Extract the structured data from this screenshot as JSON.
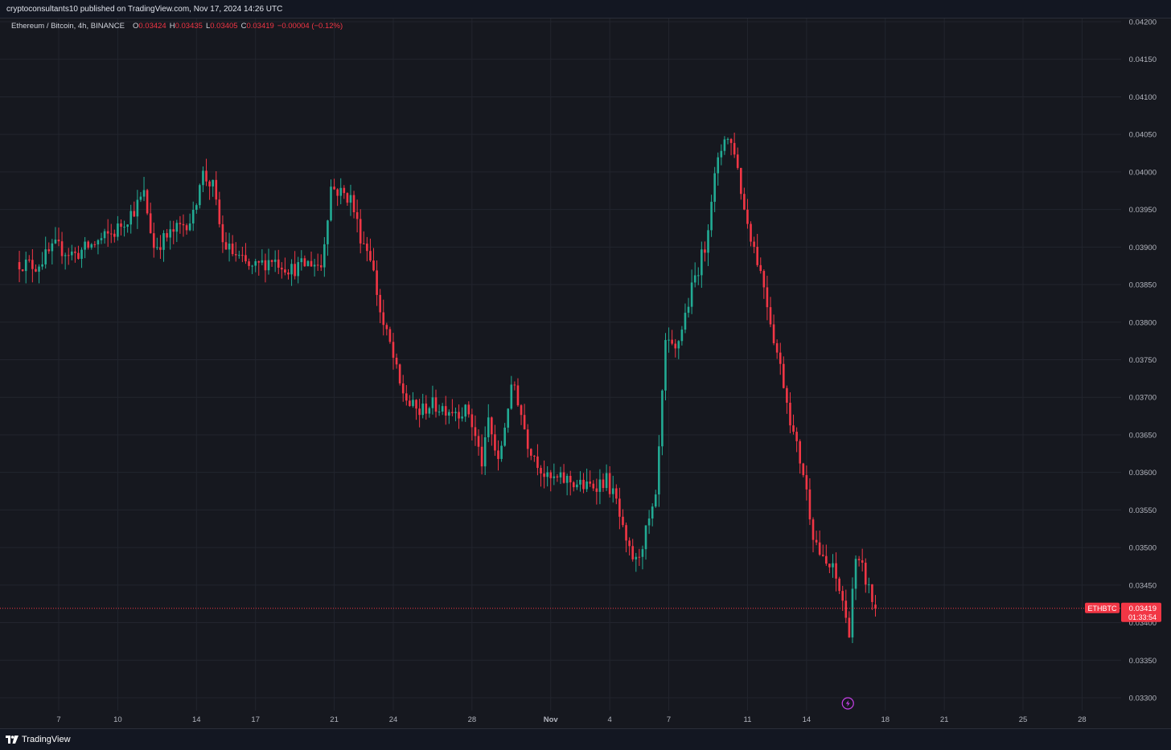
{
  "header": {
    "publisher_line": "cryptoconsultants10 published on TradingView.com, Nov 17, 2024 14:26 UTC"
  },
  "legend": {
    "symbol": "Ethereum / Bitcoin, 4h, BINANCE",
    "open_label": "O",
    "open": "0.03424",
    "high_label": "H",
    "high": "0.03435",
    "low_label": "L",
    "low": "0.03405",
    "close_label": "C",
    "close": "0.03419",
    "change": "−0.00004 (−0.12%)"
  },
  "footer": {
    "brand": "TradingView"
  },
  "colors": {
    "background": "#16181f",
    "grid": "#22252e",
    "up": "#22ab94",
    "down": "#f23645",
    "text": "#b2b5be"
  },
  "price_tag": {
    "ticker": "ETHBTC",
    "price": "0.03419",
    "countdown": "01:33:54"
  },
  "chart_data": {
    "type": "candlestick",
    "title": "Ethereum / Bitcoin, 4h, BINANCE",
    "ylim": [
      0.033,
      0.042
    ],
    "y_ticks": [
      "0.04200",
      "0.04150",
      "0.04100",
      "0.04050",
      "0.04000",
      "0.03950",
      "0.03900",
      "0.03850",
      "0.03800",
      "0.03750",
      "0.03700",
      "0.03650",
      "0.03600",
      "0.03550",
      "0.03500",
      "0.03450",
      "0.03400",
      "0.03350",
      "0.03300"
    ],
    "x_ticks": [
      {
        "label": "7",
        "day": 7
      },
      {
        "label": "10",
        "day": 10
      },
      {
        "label": "14",
        "day": 14
      },
      {
        "label": "17",
        "day": 17
      },
      {
        "label": "21",
        "day": 21
      },
      {
        "label": "24",
        "day": 24
      },
      {
        "label": "28",
        "day": 28
      },
      {
        "label": "Nov",
        "day": 32
      },
      {
        "label": "4",
        "day": 35
      },
      {
        "label": "7",
        "day": 38
      },
      {
        "label": "11",
        "day": 42
      },
      {
        "label": "14",
        "day": 45
      },
      {
        "label": "18",
        "day": 49
      },
      {
        "label": "21",
        "day": 52
      },
      {
        "label": "25",
        "day": 56
      },
      {
        "label": "28",
        "day": 59
      }
    ],
    "last_price": 0.03419,
    "anchors": [
      [
        5.0,
        0.0388
      ],
      [
        6.0,
        0.03875
      ],
      [
        7.0,
        0.039
      ],
      [
        8.0,
        0.0389
      ],
      [
        9.0,
        0.03905
      ],
      [
        10.0,
        0.0392
      ],
      [
        11.0,
        0.0395
      ],
      [
        11.5,
        0.0397
      ],
      [
        12.0,
        0.039
      ],
      [
        13.0,
        0.0392
      ],
      [
        14.0,
        0.0394
      ],
      [
        14.4,
        0.04
      ],
      [
        15.0,
        0.0398
      ],
      [
        15.5,
        0.03905
      ],
      [
        16.5,
        0.0388
      ],
      [
        17.0,
        0.0387
      ],
      [
        18.0,
        0.03885
      ],
      [
        19.0,
        0.0387
      ],
      [
        20.0,
        0.0388
      ],
      [
        20.5,
        0.03875
      ],
      [
        21.0,
        0.0398
      ],
      [
        22.0,
        0.03965
      ],
      [
        22.5,
        0.03915
      ],
      [
        23.0,
        0.0389
      ],
      [
        23.6,
        0.038
      ],
      [
        24.0,
        0.0377
      ],
      [
        24.5,
        0.03715
      ],
      [
        25.0,
        0.0369
      ],
      [
        25.5,
        0.0368
      ],
      [
        26.0,
        0.0369
      ],
      [
        27.0,
        0.03685
      ],
      [
        28.0,
        0.0368
      ],
      [
        28.7,
        0.0361
      ],
      [
        29.0,
        0.0367
      ],
      [
        29.5,
        0.0361
      ],
      [
        30.0,
        0.0369
      ],
      [
        30.3,
        0.0372
      ],
      [
        31.0,
        0.0364
      ],
      [
        32.0,
        0.0359
      ],
      [
        33.0,
        0.0359
      ],
      [
        34.0,
        0.0358
      ],
      [
        35.0,
        0.0359
      ],
      [
        35.5,
        0.0356
      ],
      [
        36.0,
        0.035
      ],
      [
        36.5,
        0.0348
      ],
      [
        37.0,
        0.0352
      ],
      [
        37.5,
        0.0356
      ],
      [
        38.0,
        0.0377
      ],
      [
        38.5,
        0.0376
      ],
      [
        39.0,
        0.0381
      ],
      [
        39.5,
        0.0386
      ],
      [
        40.0,
        0.039
      ],
      [
        40.4,
        0.0398
      ],
      [
        41.0,
        0.0405
      ],
      [
        41.5,
        0.0403
      ],
      [
        42.0,
        0.0395
      ],
      [
        42.5,
        0.039
      ],
      [
        43.0,
        0.0385
      ],
      [
        43.5,
        0.0378
      ],
      [
        44.0,
        0.0372
      ],
      [
        44.5,
        0.0365
      ],
      [
        45.0,
        0.036
      ],
      [
        45.5,
        0.0352
      ],
      [
        46.0,
        0.0348
      ],
      [
        46.5,
        0.0347
      ],
      [
        47.0,
        0.0343
      ],
      [
        47.3,
        0.0338
      ],
      [
        47.6,
        0.0348
      ],
      [
        48.0,
        0.0347
      ],
      [
        48.4,
        0.0344
      ],
      [
        48.6,
        0.03419
      ]
    ]
  }
}
